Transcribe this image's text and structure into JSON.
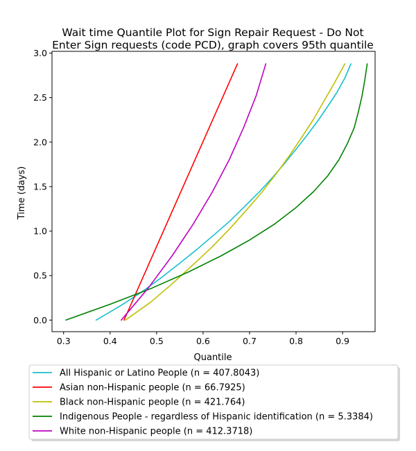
{
  "chart_data": {
    "type": "line",
    "title": [
      "Wait time Quantile Plot for Sign Repair Request - Do Not",
      "Enter Sign  requests (code PCD), graph covers 95th quantile"
    ],
    "xlabel": "Quantile",
    "ylabel": "Time (days)",
    "xlim": [
      0.275,
      0.97
    ],
    "ylim": [
      -0.13,
      3.02
    ],
    "xticks": [
      "0.3",
      "0.4",
      "0.5",
      "0.6",
      "0.7",
      "0.8",
      "0.9"
    ],
    "yticks": [
      "0.0",
      "0.5",
      "1.0",
      "1.5",
      "2.0",
      "2.5",
      "3.0"
    ],
    "grid": false,
    "legend_position": "below",
    "series": [
      {
        "name": "All Hispanic or Latino People (n = 407.8043)",
        "color": "#17becf",
        "x": [
          0.37,
          0.422,
          0.469,
          0.511,
          0.55,
          0.588,
          0.624,
          0.659,
          0.69,
          0.721,
          0.749,
          0.775,
          0.8,
          0.824,
          0.847,
          0.868,
          0.888,
          0.905,
          0.918
        ],
        "y": [
          0.0,
          0.16,
          0.32,
          0.48,
          0.64,
          0.8,
          0.96,
          1.12,
          1.28,
          1.44,
          1.6,
          1.76,
          1.92,
          2.08,
          2.24,
          2.4,
          2.56,
          2.72,
          2.88
        ]
      },
      {
        "name": "Asian non-Hispanic people (n = 66.7925)",
        "color": "#ff0000",
        "x": [
          0.43,
          0.674
        ],
        "y": [
          0.0,
          2.88
        ]
      },
      {
        "name": "Black non-Hispanic people (n = 421.764)",
        "color": "#bfbf00",
        "x": [
          0.433,
          0.487,
          0.534,
          0.578,
          0.619,
          0.658,
          0.694,
          0.727,
          0.758,
          0.786,
          0.813,
          0.838,
          0.861,
          0.883,
          0.905
        ],
        "y": [
          0.0,
          0.2,
          0.41,
          0.62,
          0.82,
          1.03,
          1.24,
          1.44,
          1.65,
          1.85,
          2.06,
          2.26,
          2.47,
          2.67,
          2.88
        ]
      },
      {
        "name": "Indigenous People - regardless of Hispanic identification (n = 5.3384)",
        "color": "#008000",
        "x": [
          0.305,
          0.401,
          0.49,
          0.568,
          0.638,
          0.7,
          0.754,
          0.799,
          0.837,
          0.868,
          0.892,
          0.91,
          0.925,
          0.934,
          0.942,
          0.948,
          0.953
        ],
        "y": [
          0.0,
          0.18,
          0.36,
          0.54,
          0.72,
          0.9,
          1.08,
          1.26,
          1.44,
          1.62,
          1.8,
          1.98,
          2.16,
          2.34,
          2.52,
          2.7,
          2.88
        ]
      },
      {
        "name": "White non-Hispanic people (n = 412.3718)",
        "color": "#bf00bf",
        "x": [
          0.424,
          0.482,
          0.533,
          0.579,
          0.62,
          0.656,
          0.687,
          0.714,
          0.735
        ],
        "y": [
          0.0,
          0.36,
          0.72,
          1.08,
          1.44,
          1.8,
          2.16,
          2.52,
          2.88
        ]
      }
    ]
  }
}
